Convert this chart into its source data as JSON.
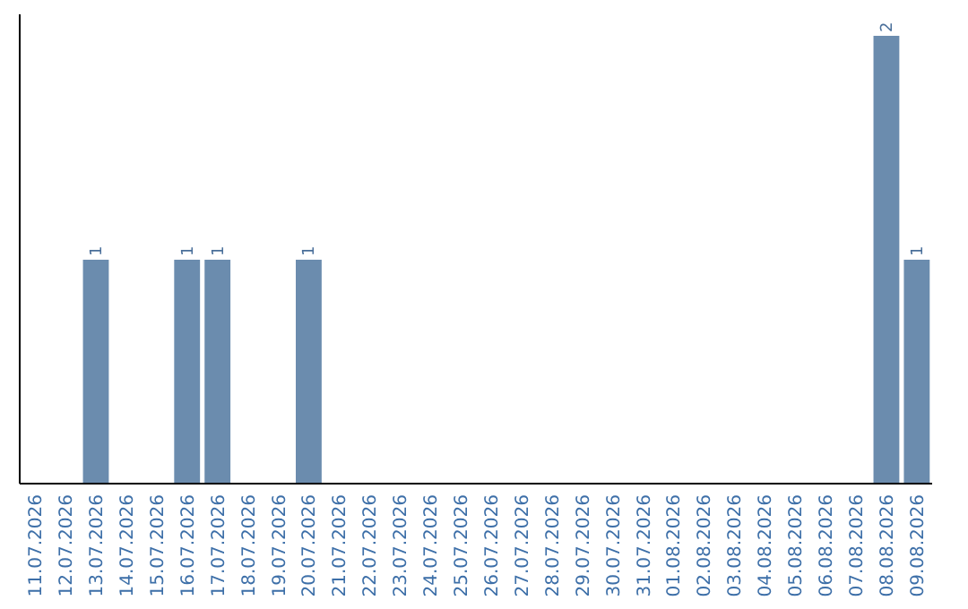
{
  "chart_data": {
    "type": "bar",
    "categories": [
      "11.07.2026",
      "12.07.2026",
      "13.07.2026",
      "14.07.2026",
      "15.07.2026",
      "16.07.2026",
      "17.07.2026",
      "18.07.2026",
      "19.07.2026",
      "20.07.2026",
      "21.07.2026",
      "22.07.2026",
      "23.07.2026",
      "24.07.2026",
      "25.07.2026",
      "26.07.2026",
      "27.07.2026",
      "28.07.2026",
      "29.07.2026",
      "30.07.2026",
      "31.07.2026",
      "01.08.2026",
      "02.08.2026",
      "03.08.2026",
      "04.08.2026",
      "05.08.2026",
      "06.08.2026",
      "07.08.2026",
      "08.08.2026",
      "09.08.2026"
    ],
    "values": [
      0,
      0,
      1,
      0,
      0,
      1,
      1,
      0,
      0,
      1,
      0,
      0,
      0,
      0,
      0,
      0,
      0,
      0,
      0,
      0,
      0,
      0,
      0,
      0,
      0,
      0,
      0,
      0,
      2,
      1
    ],
    "value_labels": [
      null,
      null,
      "1",
      null,
      null,
      "1",
      "1",
      null,
      null,
      "1",
      null,
      null,
      null,
      null,
      null,
      null,
      null,
      null,
      null,
      null,
      null,
      null,
      null,
      null,
      null,
      null,
      null,
      null,
      "2",
      "1"
    ],
    "color": "#6b8cae"
  }
}
